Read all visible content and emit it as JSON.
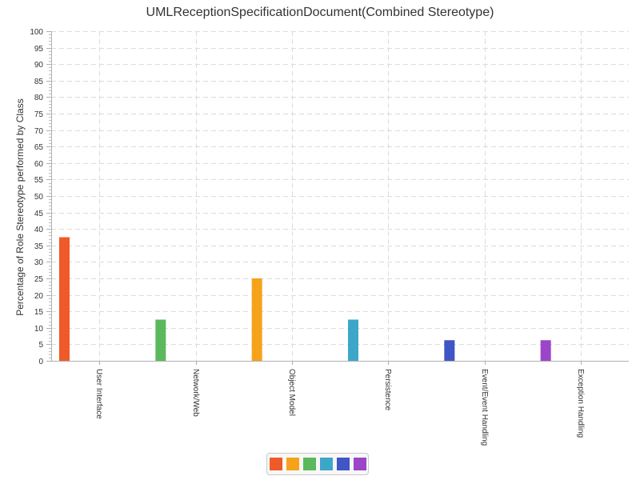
{
  "chart_data": {
    "type": "bar",
    "title": "UMLReceptionSpecificationDocument(Combined Stereotype)",
    "xlabel": "",
    "ylabel": "Percentage of Role Stereotype performed by Class",
    "ylim": [
      0,
      100
    ],
    "yticks": [
      0,
      5,
      10,
      15,
      20,
      25,
      30,
      35,
      40,
      45,
      50,
      55,
      60,
      65,
      70,
      75,
      80,
      85,
      90,
      95,
      100
    ],
    "categories": [
      "User Interface",
      "Network/Web",
      "Object Model",
      "Persistence",
      "Event/Event Handling",
      "Exception Handling"
    ],
    "series": [
      {
        "color": "#f05a28",
        "values": [
          37.5,
          0,
          0,
          0,
          0,
          0
        ]
      },
      {
        "color": "#f5a31a",
        "values": [
          0,
          0,
          25,
          0,
          0,
          0
        ]
      },
      {
        "color": "#5cb85c",
        "values": [
          0,
          12.5,
          0,
          0,
          0,
          0
        ]
      },
      {
        "color": "#3ea6c8",
        "values": [
          0,
          0,
          0,
          12.5,
          0,
          0
        ]
      },
      {
        "color": "#3f56c4",
        "values": [
          0,
          0,
          0,
          0,
          6.25,
          0
        ]
      },
      {
        "color": "#9b45c9",
        "values": [
          0,
          0,
          0,
          0,
          0,
          6.25
        ]
      }
    ],
    "grid": true,
    "legend_position": "bottom"
  }
}
